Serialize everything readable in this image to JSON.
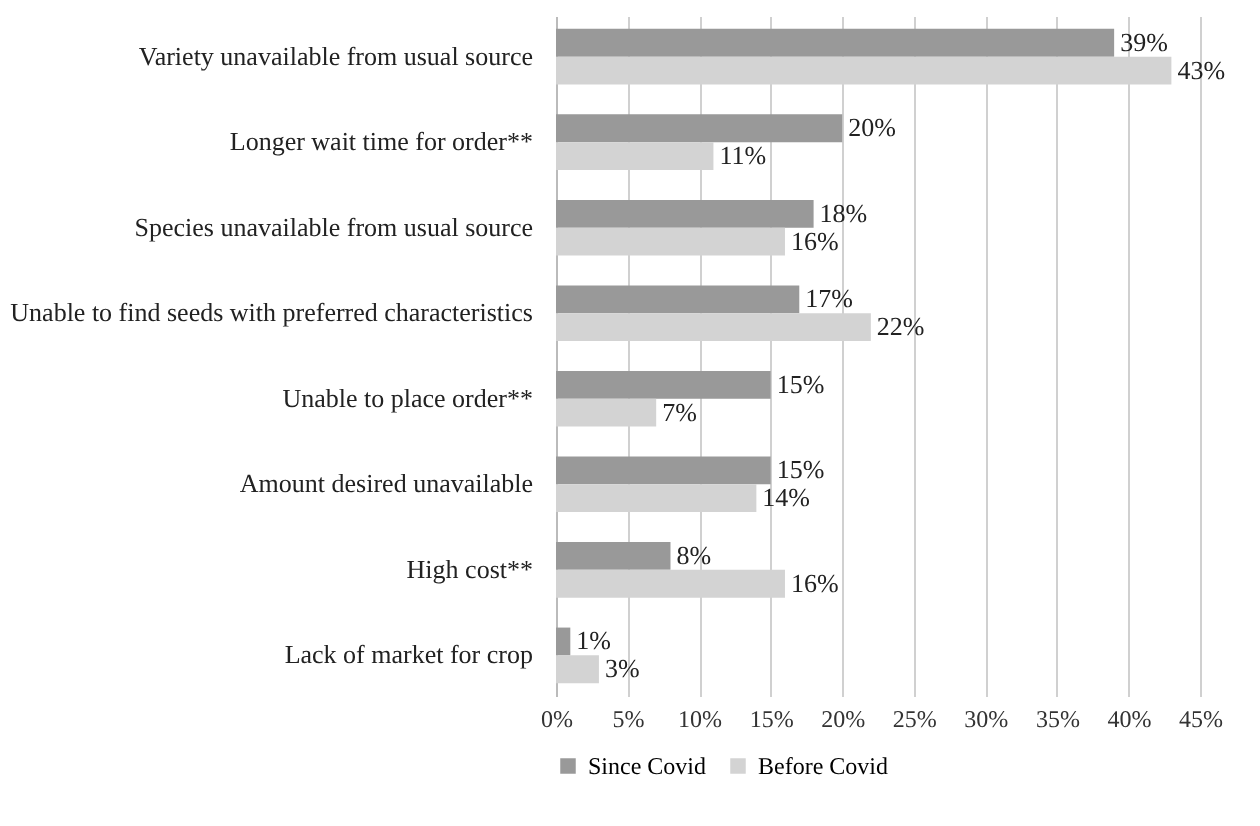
{
  "chart_data": {
    "type": "bar",
    "orientation": "horizontal",
    "categories": [
      "Variety unavailable from usual source",
      "Longer wait time for order**",
      "Species unavailable from usual source",
      "Unable to find seeds with preferred characteristics",
      "Unable to place order**",
      "Amount desired unavailable",
      "High cost**",
      "Lack of market for crop"
    ],
    "series": [
      {
        "name": "Since Covid",
        "color": "#999999",
        "values": [
          39,
          20,
          18,
          17,
          15,
          15,
          8,
          1
        ],
        "value_labels": [
          "39%",
          "20%",
          "18%",
          "17%",
          "15%",
          "15%",
          "8%",
          "1%"
        ]
      },
      {
        "name": "Before Covid",
        "color": "#d3d3d3",
        "values": [
          43,
          11,
          16,
          22,
          7,
          14,
          16,
          3
        ],
        "value_labels": [
          "43%",
          "11%",
          "16%",
          "22%",
          "7%",
          "14%",
          "16%",
          "3%"
        ]
      }
    ],
    "xlim": [
      0,
      45
    ],
    "xticks": [
      {
        "value": 0,
        "label": "0%"
      },
      {
        "value": 5,
        "label": "5%"
      },
      {
        "value": 10,
        "label": "10%"
      },
      {
        "value": 15,
        "label": "15%"
      },
      {
        "value": 20,
        "label": "20%"
      },
      {
        "value": 25,
        "label": "25%"
      },
      {
        "value": 30,
        "label": "30%"
      },
      {
        "value": 35,
        "label": "35%"
      },
      {
        "value": 40,
        "label": "40%"
      },
      {
        "value": 45,
        "label": "45%"
      }
    ],
    "grid": "x",
    "legend": "bottom"
  }
}
